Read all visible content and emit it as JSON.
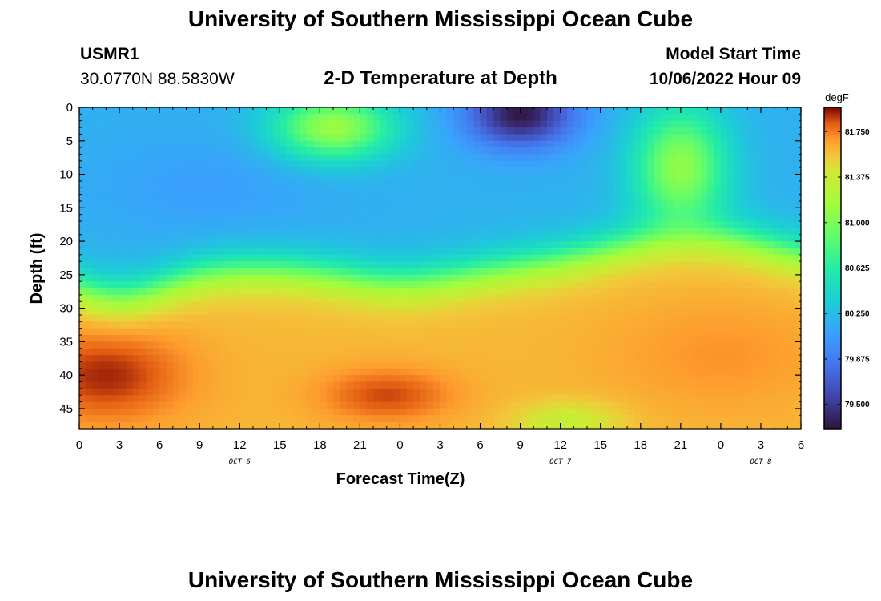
{
  "header": {
    "title": "University of Southern Mississippi Ocean Cube",
    "station_id": "USMR1",
    "coordinates": "30.0770N  88.5830W",
    "plot_title": "2-D Temperature at Depth",
    "model_start_label": "Model Start Time",
    "model_start_value": "10/06/2022 Hour 09",
    "bottom_title": "University of Southern Mississippi Ocean Cube"
  },
  "chart_data": {
    "type": "heatmap",
    "title": "2-D Temperature at Depth",
    "xlabel": "Forecast Time(Z)",
    "ylabel": "Depth (ft)",
    "x_tick_labels": [
      "0",
      "3",
      "6",
      "9",
      "12",
      "15",
      "18",
      "21",
      "0",
      "3",
      "6",
      "9",
      "12",
      "15",
      "18",
      "21",
      "0",
      "3",
      "6"
    ],
    "x_date_labels": [
      {
        "label": "OCT 6",
        "tick_index": 4
      },
      {
        "label": "OCT 7",
        "tick_index": 12
      },
      {
        "label": "OCT 8",
        "tick_index": 17
      }
    ],
    "x_hours_range": [
      0,
      54
    ],
    "y_ticks": [
      0,
      5,
      10,
      15,
      20,
      25,
      30,
      35,
      40,
      45
    ],
    "ylim": [
      0,
      48
    ],
    "colorbar": {
      "unit": "degF",
      "ticks": [
        "81.750",
        "81.375",
        "81.000",
        "80.625",
        "80.250",
        "79.875",
        "79.500"
      ],
      "range": [
        79.3,
        81.95
      ]
    },
    "features": [
      {
        "x_hours": 19,
        "depth_ft": 3,
        "value": 81.05,
        "note": "warm pocket near surface"
      },
      {
        "x_hours": 33,
        "depth_ft": 1,
        "value": 79.35,
        "note": "cold core near surface"
      },
      {
        "x_hours": 45,
        "depth_ft": 10,
        "value": 81.0,
        "note": "warm pocket"
      },
      {
        "x_hours": 2,
        "depth_ft": 40,
        "value": 81.9,
        "note": "warmest at depth"
      },
      {
        "x_hours": 23,
        "depth_ft": 43,
        "value": 81.85,
        "note": "warm at depth"
      },
      {
        "x_hours": 36.5,
        "depth_ft": 47,
        "value": 81.35,
        "note": "slightly cooler bottom"
      }
    ]
  }
}
